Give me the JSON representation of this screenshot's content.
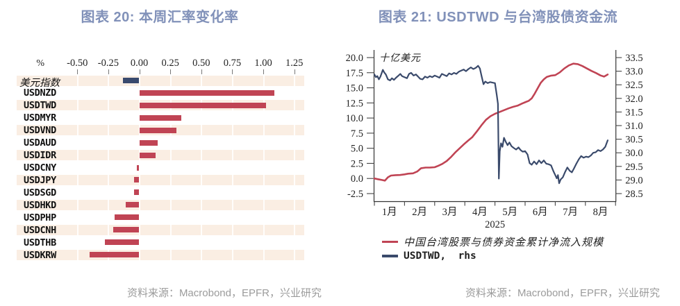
{
  "colors": {
    "red": "#c04454",
    "navy": "#394a6e",
    "stripe": "#faeee3",
    "title_blue": "#8191b9",
    "source_gray": "#9b9b9b"
  },
  "figure20": {
    "title": "图表 20: 本周汇率变化率",
    "unit": "%",
    "source": "资料来源：Macrobond，EPFR，兴业研究"
  },
  "figure21": {
    "title": "图表 21: USDTWD 与台湾股债资金流",
    "unit": "十亿美元",
    "year": "2025",
    "legend": [
      {
        "label": "中国台湾股票与债券资金累计净流入规模",
        "color": "#c04454"
      },
      {
        "label": "USDTWD,  rhs",
        "color": "#3a4a6b"
      }
    ],
    "source": "资料来源：Macrobond，EPFR，兴业研究"
  },
  "chart_data": [
    {
      "id": "weekly-fx-change",
      "type": "bar",
      "orientation": "horizontal",
      "title": "图表 20: 本周汇率变化率",
      "xlabel": "%",
      "x_ticks": [
        -0.5,
        -0.25,
        0.0,
        0.25,
        0.5,
        0.75,
        1.0,
        1.25
      ],
      "xlim": [
        -0.99,
        1.33
      ],
      "categories": [
        "美元指数",
        "USDNZD",
        "USDTWD",
        "USDMYR",
        "USDVND",
        "USDAUD",
        "USDIDR",
        "USDCNY",
        "USDJPY",
        "USDSGD",
        "USDHKD",
        "USDPHP",
        "USDCNH",
        "USDTHB",
        "USDKRW"
      ],
      "values": [
        -0.13,
        1.09,
        1.02,
        0.34,
        0.3,
        0.15,
        0.13,
        -0.02,
        -0.04,
        -0.04,
        -0.11,
        -0.2,
        -0.21,
        -0.28,
        -0.4
      ],
      "highlight_index": 0,
      "highlight_color": "#394a6e",
      "bar_color": "#c04454",
      "grid": "vertical-on-stripes"
    },
    {
      "id": "usdtwd-taiwan-flows",
      "type": "line",
      "title": "图表 21: USDTWD 与台湾股债资金流",
      "x_axis": {
        "year": "2025",
        "months": [
          "1月",
          "2月",
          "3月",
          "4月",
          "5月",
          "6月",
          "7月",
          "8月"
        ],
        "xlim_months": [
          0,
          8
        ]
      },
      "left_axis": {
        "label": "十亿美元",
        "ticks": [
          20.0,
          17.5,
          15.0,
          12.5,
          10.0,
          7.5,
          5.0,
          2.5,
          0.0,
          -2.5
        ],
        "range": [
          -2.5,
          20.0
        ]
      },
      "right_axis": {
        "label": "USDTWD",
        "ticks": [
          33.5,
          33.0,
          32.5,
          32.0,
          31.5,
          31.0,
          30.5,
          30.0,
          29.5,
          29.0,
          28.5
        ],
        "range": [
          28.5,
          33.5
        ]
      },
      "legend_position": "bottom-left",
      "grid": false,
      "series": [
        {
          "name": "中国台湾股票与债券资金累计净流入规模",
          "axis": "left",
          "color": "#c04454",
          "points": [
            [
              0.0,
              0.0
            ],
            [
              0.12,
              -0.12
            ],
            [
              0.25,
              -0.25
            ],
            [
              0.35,
              -0.35
            ],
            [
              0.45,
              0.2
            ],
            [
              0.55,
              0.48
            ],
            [
              0.7,
              0.55
            ],
            [
              0.85,
              0.58
            ],
            [
              1.0,
              0.68
            ],
            [
              1.12,
              0.8
            ],
            [
              1.28,
              0.85
            ],
            [
              1.42,
              1.15
            ],
            [
              1.55,
              1.7
            ],
            [
              1.7,
              1.8
            ],
            [
              1.85,
              1.82
            ],
            [
              2.0,
              1.86
            ],
            [
              2.12,
              2.1
            ],
            [
              2.25,
              2.4
            ],
            [
              2.4,
              2.9
            ],
            [
              2.55,
              3.6
            ],
            [
              2.7,
              4.4
            ],
            [
              2.85,
              5.1
            ],
            [
              3.0,
              5.8
            ],
            [
              3.12,
              6.3
            ],
            [
              3.25,
              6.85
            ],
            [
              3.4,
              7.8
            ],
            [
              3.55,
              8.8
            ],
            [
              3.7,
              9.7
            ],
            [
              3.85,
              10.3
            ],
            [
              4.0,
              10.7
            ],
            [
              4.15,
              11.0
            ],
            [
              4.3,
              11.3
            ],
            [
              4.45,
              11.6
            ],
            [
              4.6,
              11.85
            ],
            [
              4.75,
              12.05
            ],
            [
              4.9,
              12.4
            ],
            [
              5.02,
              12.65
            ],
            [
              5.12,
              12.85
            ],
            [
              5.22,
              13.25
            ],
            [
              5.32,
              14.05
            ],
            [
              5.42,
              14.95
            ],
            [
              5.52,
              15.85
            ],
            [
              5.62,
              16.4
            ],
            [
              5.72,
              16.8
            ],
            [
              5.85,
              17.0
            ],
            [
              6.0,
              17.1
            ],
            [
              6.15,
              17.55
            ],
            [
              6.3,
              18.2
            ],
            [
              6.45,
              18.7
            ],
            [
              6.6,
              19.0
            ],
            [
              6.75,
              18.92
            ],
            [
              6.9,
              18.6
            ],
            [
              7.05,
              18.2
            ],
            [
              7.2,
              17.8
            ],
            [
              7.35,
              17.45
            ],
            [
              7.5,
              17.05
            ],
            [
              7.62,
              16.85
            ],
            [
              7.74,
              17.2
            ]
          ]
        },
        {
          "name": "USDTWD,  rhs",
          "axis": "right",
          "color": "#3a4a6b",
          "points": [
            [
              0.0,
              32.88
            ],
            [
              0.05,
              32.78
            ],
            [
              0.1,
              32.82
            ],
            [
              0.15,
              32.7
            ],
            [
              0.2,
              32.8
            ],
            [
              0.28,
              33.05
            ],
            [
              0.33,
              32.95
            ],
            [
              0.38,
              32.88
            ],
            [
              0.45,
              32.7
            ],
            [
              0.52,
              32.66
            ],
            [
              0.58,
              32.74
            ],
            [
              0.65,
              32.68
            ],
            [
              0.72,
              32.76
            ],
            [
              0.8,
              32.84
            ],
            [
              0.86,
              32.9
            ],
            [
              0.92,
              32.82
            ],
            [
              1.0,
              32.78
            ],
            [
              1.08,
              32.74
            ],
            [
              1.15,
              32.9
            ],
            [
              1.22,
              32.94
            ],
            [
              1.3,
              32.84
            ],
            [
              1.38,
              32.88
            ],
            [
              1.45,
              32.8
            ],
            [
              1.52,
              32.72
            ],
            [
              1.6,
              32.7
            ],
            [
              1.68,
              32.8
            ],
            [
              1.76,
              32.76
            ],
            [
              1.84,
              32.82
            ],
            [
              1.92,
              32.78
            ],
            [
              2.0,
              32.84
            ],
            [
              2.08,
              32.8
            ],
            [
              2.16,
              32.76
            ],
            [
              2.24,
              32.9
            ],
            [
              2.32,
              32.86
            ],
            [
              2.4,
              32.82
            ],
            [
              2.48,
              32.92
            ],
            [
              2.56,
              32.88
            ],
            [
              2.64,
              32.94
            ],
            [
              2.72,
              32.9
            ],
            [
              2.8,
              32.98
            ],
            [
              2.88,
              33.02
            ],
            [
              2.96,
              33.06
            ],
            [
              3.04,
              33.0
            ],
            [
              3.12,
              33.08
            ],
            [
              3.2,
              33.14
            ],
            [
              3.28,
              33.08
            ],
            [
              3.36,
              33.12
            ],
            [
              3.44,
              33.2
            ],
            [
              3.5,
              33.1
            ],
            [
              3.56,
              32.8
            ],
            [
              3.62,
              32.52
            ],
            [
              3.68,
              32.62
            ],
            [
              3.76,
              32.56
            ],
            [
              3.84,
              32.6
            ],
            [
              3.92,
              32.58
            ],
            [
              4.0,
              32.56
            ],
            [
              4.06,
              32.12
            ],
            [
              4.1,
              31.8
            ],
            [
              4.13,
              29.05
            ],
            [
              4.16,
              30.05
            ],
            [
              4.2,
              30.35
            ],
            [
              4.25,
              30.22
            ],
            [
              4.3,
              30.55
            ],
            [
              4.36,
              30.4
            ],
            [
              4.42,
              30.28
            ],
            [
              4.48,
              30.38
            ],
            [
              4.55,
              30.24
            ],
            [
              4.62,
              30.18
            ],
            [
              4.7,
              30.12
            ],
            [
              4.78,
              30.2
            ],
            [
              4.85,
              30.1
            ],
            [
              4.92,
              30.04
            ],
            [
              5.0,
              30.06
            ],
            [
              5.08,
              29.94
            ],
            [
              5.15,
              29.62
            ],
            [
              5.22,
              29.56
            ],
            [
              5.3,
              29.68
            ],
            [
              5.38,
              29.58
            ],
            [
              5.46,
              29.72
            ],
            [
              5.54,
              29.62
            ],
            [
              5.62,
              29.72
            ],
            [
              5.7,
              29.6
            ],
            [
              5.78,
              29.58
            ],
            [
              5.86,
              29.54
            ],
            [
              5.94,
              29.32
            ],
            [
              6.0,
              29.18
            ],
            [
              6.05,
              29.06
            ],
            [
              6.09,
              29.18
            ],
            [
              6.13,
              28.88
            ],
            [
              6.18,
              29.02
            ],
            [
              6.25,
              29.1
            ],
            [
              6.33,
              29.3
            ],
            [
              6.4,
              29.46
            ],
            [
              6.48,
              29.34
            ],
            [
              6.55,
              29.28
            ],
            [
              6.62,
              29.42
            ],
            [
              6.7,
              29.6
            ],
            [
              6.78,
              29.76
            ],
            [
              6.86,
              29.88
            ],
            [
              6.94,
              29.82
            ],
            [
              7.02,
              29.86
            ],
            [
              7.1,
              29.84
            ],
            [
              7.18,
              29.9
            ],
            [
              7.26,
              30.0
            ],
            [
              7.34,
              30.02
            ],
            [
              7.42,
              30.1
            ],
            [
              7.5,
              30.06
            ],
            [
              7.58,
              30.12
            ],
            [
              7.66,
              30.22
            ],
            [
              7.74,
              30.46
            ]
          ]
        }
      ]
    }
  ]
}
